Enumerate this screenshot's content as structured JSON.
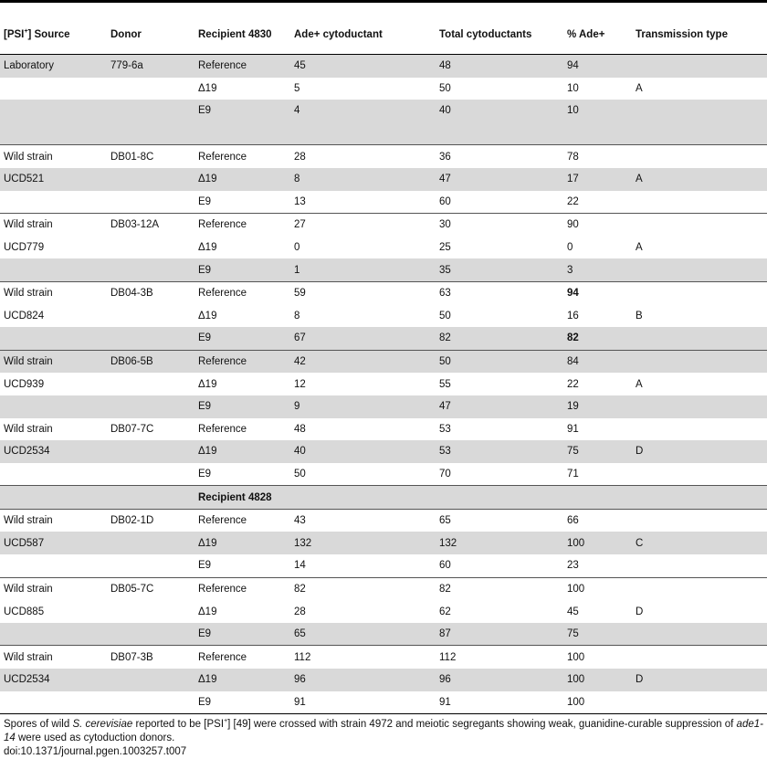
{
  "header": {
    "source_pre": "[PSI",
    "source_sup": "+",
    "source_post": "] Source",
    "donor": "Donor",
    "recipient": "Recipient 4830",
    "ade_plus": "Ade+ cytoductant",
    "total": "Total cytoductants",
    "pct": "% Ade+",
    "ttype": "Transmission type"
  },
  "subheader": "Recipient 4828",
  "rows": [
    {
      "source": "Laboratory",
      "donor": "779-6a",
      "recipient": "Reference",
      "ade": "45",
      "total": "48",
      "pct": "94",
      "ttype": "",
      "shade": true,
      "start": true
    },
    {
      "source": "",
      "donor": "",
      "recipient": "Δ19",
      "ade": "5",
      "total": "50",
      "pct": "10",
      "ttype": "A",
      "shade": false
    },
    {
      "source": "",
      "donor": "",
      "recipient": "E9",
      "ade": "4",
      "total": "40",
      "pct": "10",
      "ttype": "",
      "shade": true
    },
    {
      "source": "",
      "donor": "",
      "recipient": "",
      "ade": "",
      "total": "",
      "pct": "",
      "ttype": "",
      "shade": true,
      "spacer": true
    },
    {
      "source": "Wild strain",
      "donor": "DB01-8C",
      "recipient": "Reference",
      "ade": "28",
      "total": "36",
      "pct": "78",
      "ttype": "",
      "shade": false,
      "start": true
    },
    {
      "source": "UCD521",
      "donor": "",
      "recipient": "Δ19",
      "ade": "8",
      "total": "47",
      "pct": "17",
      "ttype": "A",
      "shade": true
    },
    {
      "source": "",
      "donor": "",
      "recipient": "E9",
      "ade": "13",
      "total": "60",
      "pct": "22",
      "ttype": "",
      "shade": false
    },
    {
      "source": "Wild strain",
      "donor": "DB03-12A",
      "recipient": "Reference",
      "ade": "27",
      "total": "30",
      "pct": "90",
      "ttype": "",
      "shade": false,
      "start": true
    },
    {
      "source": "UCD779",
      "donor": "",
      "recipient": "Δ19",
      "ade": "0",
      "total": "25",
      "pct": "0",
      "ttype": "A",
      "shade": false
    },
    {
      "source": "",
      "donor": "",
      "recipient": "E9",
      "ade": "1",
      "total": "35",
      "pct": "3",
      "ttype": "",
      "shade": true
    },
    {
      "source": "Wild strain",
      "donor": "DB04-3B",
      "recipient": "Reference",
      "ade": "59",
      "total": "63",
      "pct": "94",
      "ttype": "",
      "shade": false,
      "start": true,
      "pctBold": true
    },
    {
      "source": "UCD824",
      "donor": "",
      "recipient": "Δ19",
      "ade": "8",
      "total": "50",
      "pct": "16",
      "ttype": "B",
      "shade": false
    },
    {
      "source": "",
      "donor": "",
      "recipient": "E9",
      "ade": "67",
      "total": "82",
      "pct": "82",
      "ttype": "",
      "shade": true,
      "pctBold": true
    },
    {
      "source": "Wild strain",
      "donor": "DB06-5B",
      "recipient": "Reference",
      "ade": "42",
      "total": "50",
      "pct": "84",
      "ttype": "",
      "shade": true,
      "start": true
    },
    {
      "source": "UCD939",
      "donor": "",
      "recipient": "Δ19",
      "ade": "12",
      "total": "55",
      "pct": "22",
      "ttype": "A",
      "shade": false
    },
    {
      "source": "",
      "donor": "",
      "recipient": "E9",
      "ade": "9",
      "total": "47",
      "pct": "19",
      "ttype": "",
      "shade": true
    },
    {
      "source": "Wild strain",
      "donor": "DB07-7C",
      "recipient": "Reference",
      "ade": "48",
      "total": "53",
      "pct": "91",
      "ttype": "",
      "shade": false
    },
    {
      "source": "UCD2534",
      "donor": "",
      "recipient": "Δ19",
      "ade": "40",
      "total": "53",
      "pct": "75",
      "ttype": "D",
      "shade": true
    },
    {
      "source": "",
      "donor": "",
      "recipient": "E9",
      "ade": "50",
      "total": "70",
      "pct": "71",
      "ttype": "",
      "shade": false
    },
    {
      "subheader": true,
      "shade": true,
      "start": true
    },
    {
      "source": "Wild strain",
      "donor": "DB02-1D",
      "recipient": "Reference",
      "ade": "43",
      "total": "65",
      "pct": "66",
      "ttype": "",
      "shade": false,
      "start": true
    },
    {
      "source": "UCD587",
      "donor": "",
      "recipient": "Δ19",
      "ade": "132",
      "total": "132",
      "pct": "100",
      "ttype": "C",
      "shade": true
    },
    {
      "source": "",
      "donor": "",
      "recipient": "E9",
      "ade": "14",
      "total": "60",
      "pct": "23",
      "ttype": "",
      "shade": false
    },
    {
      "source": "Wild strain",
      "donor": "DB05-7C",
      "recipient": "Reference",
      "ade": "82",
      "total": "82",
      "pct": "100",
      "ttype": "",
      "shade": false,
      "start": true
    },
    {
      "source": "UCD885",
      "donor": "",
      "recipient": "Δ19",
      "ade": "28",
      "total": "62",
      "pct": "45",
      "ttype": "D",
      "shade": false
    },
    {
      "source": "",
      "donor": "",
      "recipient": "E9",
      "ade": "65",
      "total": "87",
      "pct": "75",
      "ttype": "",
      "shade": true
    },
    {
      "source": "Wild strain",
      "donor": "DB07-3B",
      "recipient": "Reference",
      "ade": "112",
      "total": "112",
      "pct": "100",
      "ttype": "",
      "shade": false,
      "start": true
    },
    {
      "source": "UCD2534",
      "donor": "",
      "recipient": "Δ19",
      "ade": "96",
      "total": "96",
      "pct": "100",
      "ttype": "D",
      "shade": true
    },
    {
      "source": "",
      "donor": "",
      "recipient": "E9",
      "ade": "91",
      "total": "91",
      "pct": "100",
      "ttype": "",
      "shade": false
    }
  ],
  "footnote": {
    "p1": "Spores of wild ",
    "species": "S. cerevisiae",
    "p2": " reported to be [PSI",
    "sup": "+",
    "p3": "] [49] were crossed with strain 4972 and meiotic segregants showing weak, guanidine-curable suppression of ",
    "gene": "ade1-14",
    "p4": " were used as cytoduction donors.",
    "doi": "doi:10.1371/journal.pgen.1003257.t007"
  }
}
